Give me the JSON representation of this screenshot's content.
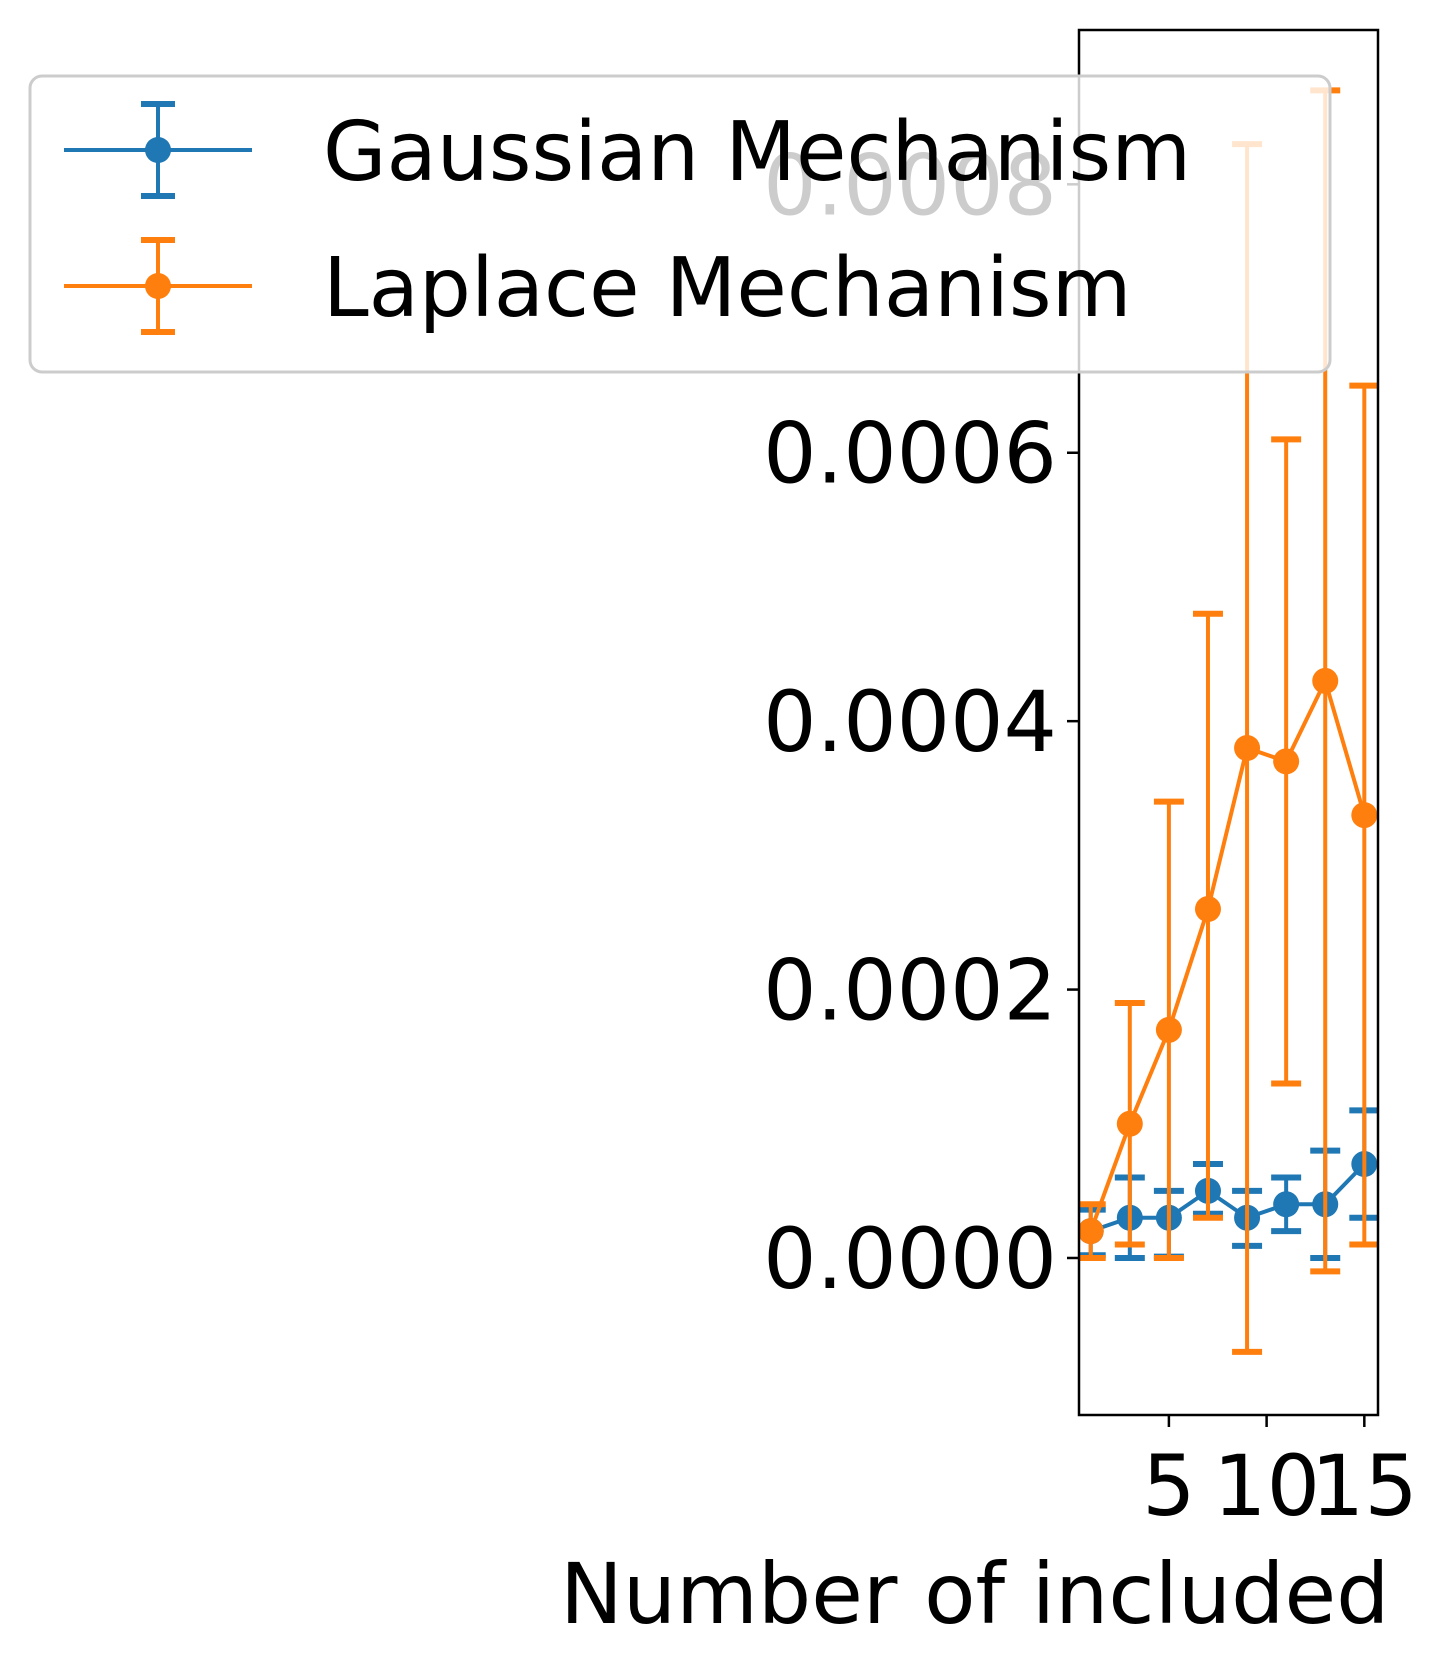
{
  "chart_data": {
    "type": "line",
    "title": "",
    "xlabel": "Number of included",
    "ylabel": "",
    "x": [
      1,
      3,
      5,
      7,
      9,
      11,
      13,
      15
    ],
    "xticks": [
      5,
      10,
      15
    ],
    "xlim": [
      0.4,
      15.7
    ],
    "yticks": [
      0.0,
      0.0002,
      0.0004,
      0.0006,
      0.0008
    ],
    "ytick_labels": [
      "0.0000",
      "0.0002",
      "0.0004",
      "0.0006",
      "0.0008"
    ],
    "ylim": [
      -0.000117,
      0.000915
    ],
    "grid": false,
    "legend_position": "top-left",
    "series": [
      {
        "name": "Gaussian Mechanism",
        "color": "#1f77b4",
        "values": [
          2e-05,
          3e-05,
          3e-05,
          5e-05,
          3e-05,
          4e-05,
          4e-05,
          7e-05
        ],
        "err_low": [
          2e-06,
          0.0,
          1e-06,
          3.3e-05,
          9e-06,
          2e-05,
          0.0,
          3e-05
        ],
        "err_high": [
          3.6e-05,
          6e-05,
          5e-05,
          7e-05,
          5e-05,
          6e-05,
          8e-05,
          0.00011
        ]
      },
      {
        "name": "Laplace Mechanism",
        "color": "#ff7f0e",
        "values": [
          2e-05,
          0.0001,
          0.00017,
          0.00026,
          0.00038,
          0.00037,
          0.00043,
          0.00033
        ],
        "err_low": [
          0.0,
          1e-05,
          0.0,
          3e-05,
          -7e-05,
          0.00013,
          -1e-05,
          1e-05
        ],
        "err_high": [
          4e-05,
          0.00019,
          0.00034,
          0.00048,
          0.00083,
          0.00061,
          0.00087,
          0.00065
        ]
      }
    ]
  }
}
